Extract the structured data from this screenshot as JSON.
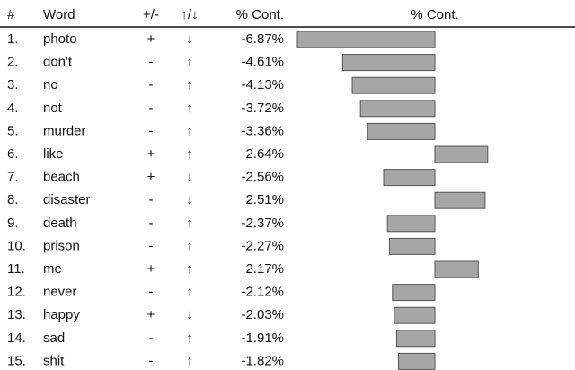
{
  "chart_data": {
    "type": "bar",
    "orientation": "horizontal",
    "headers": [
      "#",
      "Word",
      "+/-",
      "↑/↓",
      "% Cont.",
      "% Cont."
    ],
    "ranks": [
      "1.",
      "2.",
      "3.",
      "4.",
      "5.",
      "6.",
      "7.",
      "8.",
      "9.",
      "10.",
      "11.",
      "12.",
      "13.",
      "14.",
      "15."
    ],
    "categories": [
      "photo",
      "don't",
      "no",
      "not",
      "murder",
      "like",
      "beach",
      "disaster",
      "death",
      "prison",
      "me",
      "never",
      "happy",
      "sad",
      "shit"
    ],
    "signs": [
      "+",
      "-",
      "-",
      "-",
      "-",
      "+",
      "+",
      "-",
      "-",
      "-",
      "+",
      "-",
      "+",
      "-",
      "-"
    ],
    "arrows": [
      "↓",
      "↑",
      "↑",
      "↑",
      "↑",
      "↑",
      "↓",
      "↓",
      "↑",
      "↑",
      "↑",
      "↑",
      "↓",
      "↑",
      "↑"
    ],
    "values": [
      -6.87,
      -4.61,
      -4.13,
      -3.72,
      -3.36,
      2.64,
      -2.56,
      2.51,
      -2.37,
      -2.27,
      2.17,
      -2.12,
      -2.03,
      -1.91,
      -1.82
    ],
    "value_labels": [
      "-6.87%",
      "-4.61%",
      "-4.13%",
      "-3.72%",
      "-3.36%",
      "2.64%",
      "-2.56%",
      "2.51%",
      "-2.37%",
      "-2.27%",
      "2.17%",
      "-2.12%",
      "-2.03%",
      "-1.91%",
      "-1.82%"
    ],
    "color": "#a6a6a6"
  }
}
